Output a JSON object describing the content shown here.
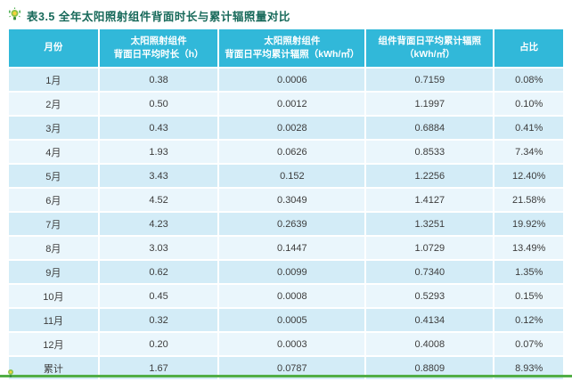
{
  "title": "表3.5 全年太阳照射组件背面时长与累计辐照量对比",
  "chart_data": {
    "type": "table",
    "title": "表3.5 全年太阳照射组件背面时长与累计辐照量对比",
    "columns": [
      "月份",
      "太阳照射组件\n背面日平均时长（h）",
      "太阳照射组件\n背面日平均累计辐照（kWh/㎡）",
      "组件背面日平均累计辐照\n（kWh/㎡）",
      "占比"
    ],
    "rows": [
      [
        "1月",
        "0.38",
        "0.0006",
        "0.7159",
        "0.08%"
      ],
      [
        "2月",
        "0.50",
        "0.0012",
        "1.1997",
        "0.10%"
      ],
      [
        "3月",
        "0.43",
        "0.0028",
        "0.6884",
        "0.41%"
      ],
      [
        "4月",
        "1.93",
        "0.0626",
        "0.8533",
        "7.34%"
      ],
      [
        "5月",
        "3.43",
        "0.152",
        "1.2256",
        "12.40%"
      ],
      [
        "6月",
        "4.52",
        "0.3049",
        "1.4127",
        "21.58%"
      ],
      [
        "7月",
        "4.23",
        "0.2639",
        "1.3251",
        "19.92%"
      ],
      [
        "8月",
        "3.03",
        "0.1447",
        "1.0729",
        "13.49%"
      ],
      [
        "9月",
        "0.62",
        "0.0099",
        "0.7340",
        "1.35%"
      ],
      [
        "10月",
        "0.45",
        "0.0008",
        "0.5293",
        "0.15%"
      ],
      [
        "11月",
        "0.32",
        "0.0005",
        "0.4134",
        "0.12%"
      ],
      [
        "12月",
        "0.20",
        "0.0003",
        "0.4008",
        "0.07%"
      ],
      [
        "累计",
        "1.67",
        "0.0787",
        "0.8809",
        "8.93%"
      ]
    ]
  },
  "icons": {
    "title_icon": "plant-bulb-icon",
    "footer_icon": "sprout-icon"
  },
  "colors": {
    "header_bg": "#31b8d9",
    "row_odd": "#d3ecf7",
    "row_even": "#eaf6fc",
    "title_color": "#17695a",
    "body_text": "#3c3c3c",
    "footer_green": "#52ae46",
    "page_bg": "#ffffff"
  }
}
